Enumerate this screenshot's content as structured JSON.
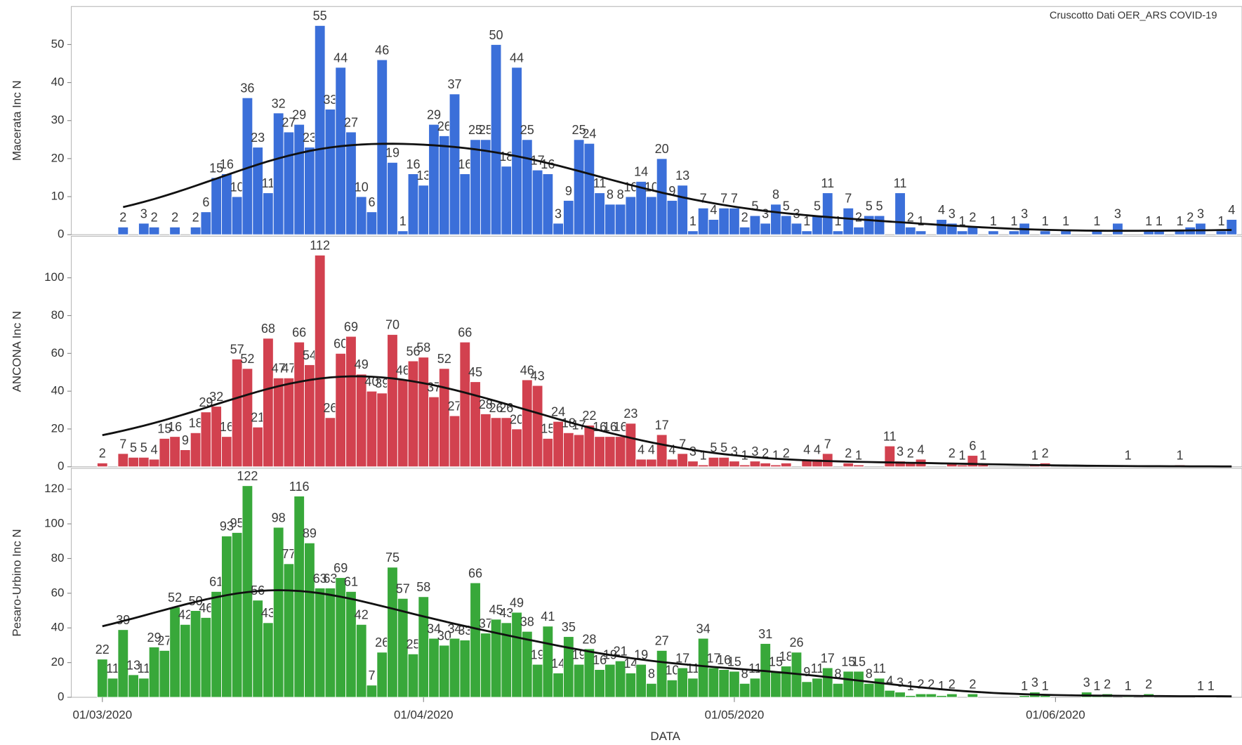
{
  "chart_data": {
    "type": "bar",
    "annotation": "Cruscotto Dati OER_ARS COVID-19",
    "x_label": "DATA",
    "xlim": [
      "27/02/2020",
      "19/06/2020"
    ],
    "xticks": [
      "01/03/2020",
      "01/04/2020",
      "01/05/2020",
      "01/06/2020"
    ],
    "smooth": true,
    "x": [
      "01/03/2020",
      "02/03/2020",
      "03/03/2020",
      "04/03/2020",
      "05/03/2020",
      "06/03/2020",
      "07/03/2020",
      "08/03/2020",
      "09/03/2020",
      "10/03/2020",
      "11/03/2020",
      "12/03/2020",
      "13/03/2020",
      "14/03/2020",
      "15/03/2020",
      "16/03/2020",
      "17/03/2020",
      "18/03/2020",
      "19/03/2020",
      "20/03/2020",
      "21/03/2020",
      "22/03/2020",
      "23/03/2020",
      "24/03/2020",
      "25/03/2020",
      "26/03/2020",
      "27/03/2020",
      "28/03/2020",
      "29/03/2020",
      "30/03/2020",
      "31/03/2020",
      "01/04/2020",
      "02/04/2020",
      "03/04/2020",
      "04/04/2020",
      "05/04/2020",
      "06/04/2020",
      "07/04/2020",
      "08/04/2020",
      "09/04/2020",
      "10/04/2020",
      "11/04/2020",
      "12/04/2020",
      "13/04/2020",
      "14/04/2020",
      "15/04/2020",
      "16/04/2020",
      "17/04/2020",
      "18/04/2020",
      "19/04/2020",
      "20/04/2020",
      "21/04/2020",
      "22/04/2020",
      "23/04/2020",
      "24/04/2020",
      "25/04/2020",
      "26/04/2020",
      "27/04/2020",
      "28/04/2020",
      "29/04/2020",
      "30/04/2020",
      "01/05/2020",
      "02/05/2020",
      "03/05/2020",
      "04/05/2020",
      "05/05/2020",
      "06/05/2020",
      "07/05/2020",
      "08/05/2020",
      "09/05/2020",
      "10/05/2020",
      "11/05/2020",
      "12/05/2020",
      "13/05/2020",
      "14/05/2020",
      "15/05/2020",
      "16/05/2020",
      "17/05/2020",
      "18/05/2020",
      "19/05/2020",
      "20/05/2020",
      "21/05/2020",
      "22/05/2020",
      "23/05/2020",
      "24/05/2020",
      "25/05/2020",
      "26/05/2020",
      "27/05/2020",
      "28/05/2020",
      "29/05/2020",
      "30/05/2020",
      "31/05/2020",
      "01/06/2020",
      "02/06/2020",
      "03/06/2020",
      "04/06/2020",
      "05/06/2020",
      "06/06/2020",
      "07/06/2020",
      "08/06/2020",
      "09/06/2020",
      "10/06/2020",
      "11/06/2020",
      "12/06/2020",
      "13/06/2020",
      "14/06/2020",
      "15/06/2020",
      "16/06/2020",
      "17/06/2020",
      "18/06/2020"
    ],
    "series": [
      {
        "name": "Macerata Inc N",
        "color": "#3b6fd9",
        "ylim": [
          0,
          60
        ],
        "yticks": [
          0,
          10,
          20,
          30,
          40,
          50
        ],
        "values": [
          0,
          0,
          2,
          0,
          3,
          2,
          0,
          2,
          0,
          2,
          6,
          15,
          16,
          10,
          36,
          23,
          11,
          32,
          27,
          29,
          23,
          55,
          33,
          44,
          27,
          10,
          6,
          46,
          19,
          1,
          16,
          13,
          29,
          26,
          37,
          16,
          25,
          25,
          50,
          18,
          44,
          25,
          17,
          16,
          3,
          9,
          25,
          24,
          11,
          8,
          8,
          10,
          14,
          10,
          20,
          9,
          13,
          1,
          7,
          4,
          7,
          7,
          2,
          5,
          3,
          8,
          5,
          3,
          1,
          5,
          11,
          1,
          7,
          2,
          5,
          5,
          0,
          11,
          2,
          1,
          0,
          4,
          3,
          1,
          2,
          0,
          1,
          0,
          1,
          3,
          0,
          1,
          0,
          1,
          0,
          0,
          1,
          0,
          3,
          0,
          0,
          1,
          1,
          0,
          1,
          2,
          3,
          0,
          1,
          4
        ]
      },
      {
        "name": "ANCONA Inc N",
        "color": "#d2414f",
        "ylim": [
          0,
          122
        ],
        "yticks": [
          0,
          20,
          40,
          60,
          80,
          100
        ],
        "values": [
          2,
          0,
          7,
          5,
          5,
          4,
          15,
          16,
          9,
          18,
          29,
          32,
          16,
          57,
          52,
          21,
          68,
          47,
          47,
          66,
          54,
          112,
          26,
          60,
          69,
          49,
          40,
          39,
          70,
          46,
          56,
          58,
          37,
          52,
          27,
          66,
          45,
          28,
          26,
          26,
          20,
          46,
          43,
          15,
          24,
          18,
          17,
          22,
          16,
          16,
          16,
          23,
          4,
          4,
          17,
          4,
          7,
          3,
          1,
          5,
          5,
          3,
          1,
          3,
          2,
          1,
          2,
          0,
          4,
          4,
          7,
          0,
          2,
          1,
          0,
          0,
          11,
          3,
          2,
          4,
          0,
          0,
          2,
          1,
          6,
          1,
          0,
          0,
          0,
          0,
          1,
          2,
          0,
          0,
          0,
          0,
          0,
          0,
          0,
          1,
          0,
          0,
          0,
          0,
          1,
          0,
          0,
          0,
          0,
          0
        ]
      },
      {
        "name": "Pesaro-Urbino Inc N",
        "color": "#38a83a",
        "ylim": [
          0,
          132
        ],
        "yticks": [
          0,
          20,
          40,
          60,
          80,
          100,
          120
        ],
        "values": [
          22,
          11,
          39,
          13,
          11,
          29,
          27,
          52,
          42,
          50,
          46,
          61,
          93,
          95,
          122,
          56,
          43,
          98,
          77,
          116,
          89,
          63,
          63,
          69,
          61,
          42,
          7,
          26,
          75,
          57,
          25,
          58,
          34,
          30,
          34,
          33,
          66,
          37,
          45,
          43,
          49,
          38,
          19,
          41,
          14,
          35,
          19,
          28,
          16,
          19,
          21,
          14,
          19,
          8,
          27,
          10,
          17,
          11,
          34,
          17,
          16,
          15,
          8,
          11,
          31,
          15,
          18,
          26,
          9,
          11,
          17,
          8,
          15,
          15,
          8,
          11,
          4,
          3,
          1,
          2,
          2,
          1,
          2,
          0,
          2,
          0,
          0,
          0,
          0,
          1,
          3,
          1,
          0,
          0,
          0,
          3,
          1,
          2,
          0,
          1,
          0,
          2,
          0,
          0,
          0,
          0,
          1,
          1,
          0,
          0
        ]
      }
    ]
  }
}
